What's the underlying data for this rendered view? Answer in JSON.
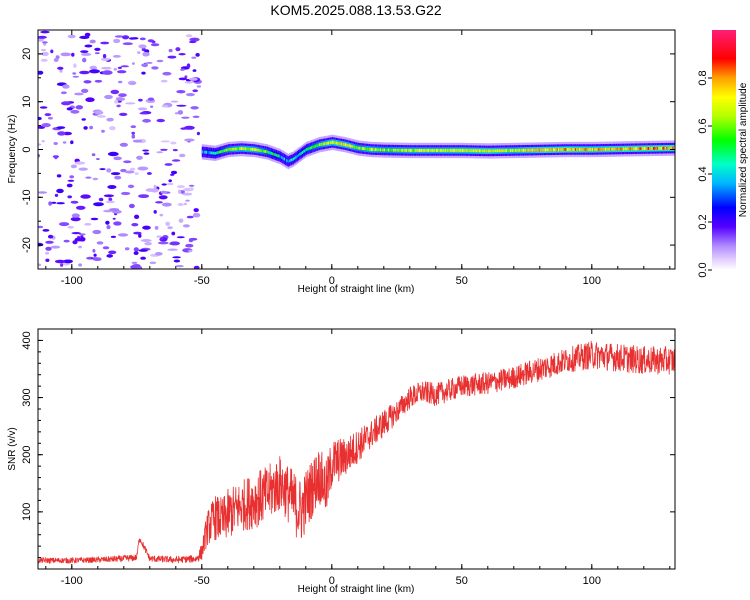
{
  "title": "KOM5.2025.088.13.53.G22",
  "chart_data": [
    {
      "type": "heatmap",
      "xlabel": "Height of straight line (km)",
      "ylabel": "Frequency (Hz)",
      "xlim": [
        -113,
        132
      ],
      "ylim": [
        -25,
        25
      ],
      "x_ticks": [
        -100,
        -50,
        0,
        50,
        100
      ],
      "y_ticks": [
        -20,
        -10,
        0,
        10,
        20
      ],
      "colorbar": {
        "label": "Normalized spectral amplitude",
        "range": [
          0,
          1
        ],
        "ticks": [
          0.0,
          0.2,
          0.4,
          0.6,
          0.8
        ],
        "tick_labels": [
          "0.0",
          "0.2",
          "0.4",
          "0.6",
          "0.8"
        ]
      },
      "noise_region_x": [
        -113,
        -51
      ],
      "ridge": {
        "x": [
          -50,
          -45,
          -40,
          -35,
          -30,
          -25,
          -20,
          -17,
          -15,
          -10,
          -5,
          0,
          5,
          10,
          15,
          20,
          30,
          40,
          50,
          60,
          70,
          80,
          90,
          100,
          110,
          120,
          132
        ],
        "freq": [
          -0.5,
          -0.8,
          0.0,
          0.2,
          0.0,
          -0.5,
          -1.5,
          -2.5,
          -2.0,
          0.0,
          1.0,
          1.5,
          1.0,
          0.3,
          0.0,
          -0.1,
          -0.2,
          -0.2,
          -0.2,
          -0.3,
          -0.2,
          -0.1,
          0.0,
          0.0,
          0.1,
          0.2,
          0.3
        ],
        "amplitude": [
          0.35,
          0.45,
          0.6,
          0.65,
          0.65,
          0.55,
          0.4,
          0.35,
          0.4,
          0.5,
          0.6,
          0.7,
          0.7,
          0.6,
          0.65,
          0.6,
          0.65,
          0.65,
          0.7,
          0.7,
          0.65,
          0.75,
          0.8,
          0.75,
          0.75,
          0.8,
          0.8
        ]
      }
    },
    {
      "type": "line",
      "xlabel": "Height of straight line (km)",
      "ylabel": "SNR (v/v)",
      "xlim": [
        -113,
        132
      ],
      "ylim": [
        0,
        420
      ],
      "x_ticks": [
        -100,
        -50,
        0,
        50,
        100
      ],
      "y_ticks": [
        100,
        200,
        300,
        400
      ],
      "series": [
        {
          "color": "#e83030",
          "x": [
            -113,
            -100,
            -90,
            -80,
            -75,
            -74,
            -70,
            -60,
            -52,
            -50,
            -48,
            -45,
            -42,
            -40,
            -35,
            -30,
            -25,
            -20,
            -18,
            -15,
            -12,
            -10,
            -5,
            -2,
            0,
            5,
            10,
            15,
            20,
            25,
            30,
            35,
            40,
            50,
            60,
            70,
            80,
            90,
            100,
            110,
            120,
            132
          ],
          "y": [
            15,
            15,
            16,
            18,
            20,
            55,
            18,
            16,
            18,
            30,
            70,
            90,
            85,
            95,
            110,
            120,
            130,
            150,
            140,
            120,
            100,
            120,
            165,
            140,
            185,
            195,
            215,
            235,
            255,
            275,
            300,
            310,
            305,
            320,
            325,
            335,
            350,
            365,
            375,
            370,
            365,
            365
          ],
          "noise": [
            5,
            5,
            5,
            6,
            6,
            6,
            6,
            6,
            7,
            15,
            30,
            40,
            40,
            45,
            45,
            50,
            50,
            50,
            50,
            55,
            60,
            55,
            50,
            50,
            45,
            35,
            30,
            25,
            25,
            20,
            20,
            20,
            20,
            20,
            20,
            20,
            22,
            22,
            25,
            25,
            25,
            25
          ]
        }
      ]
    }
  ]
}
